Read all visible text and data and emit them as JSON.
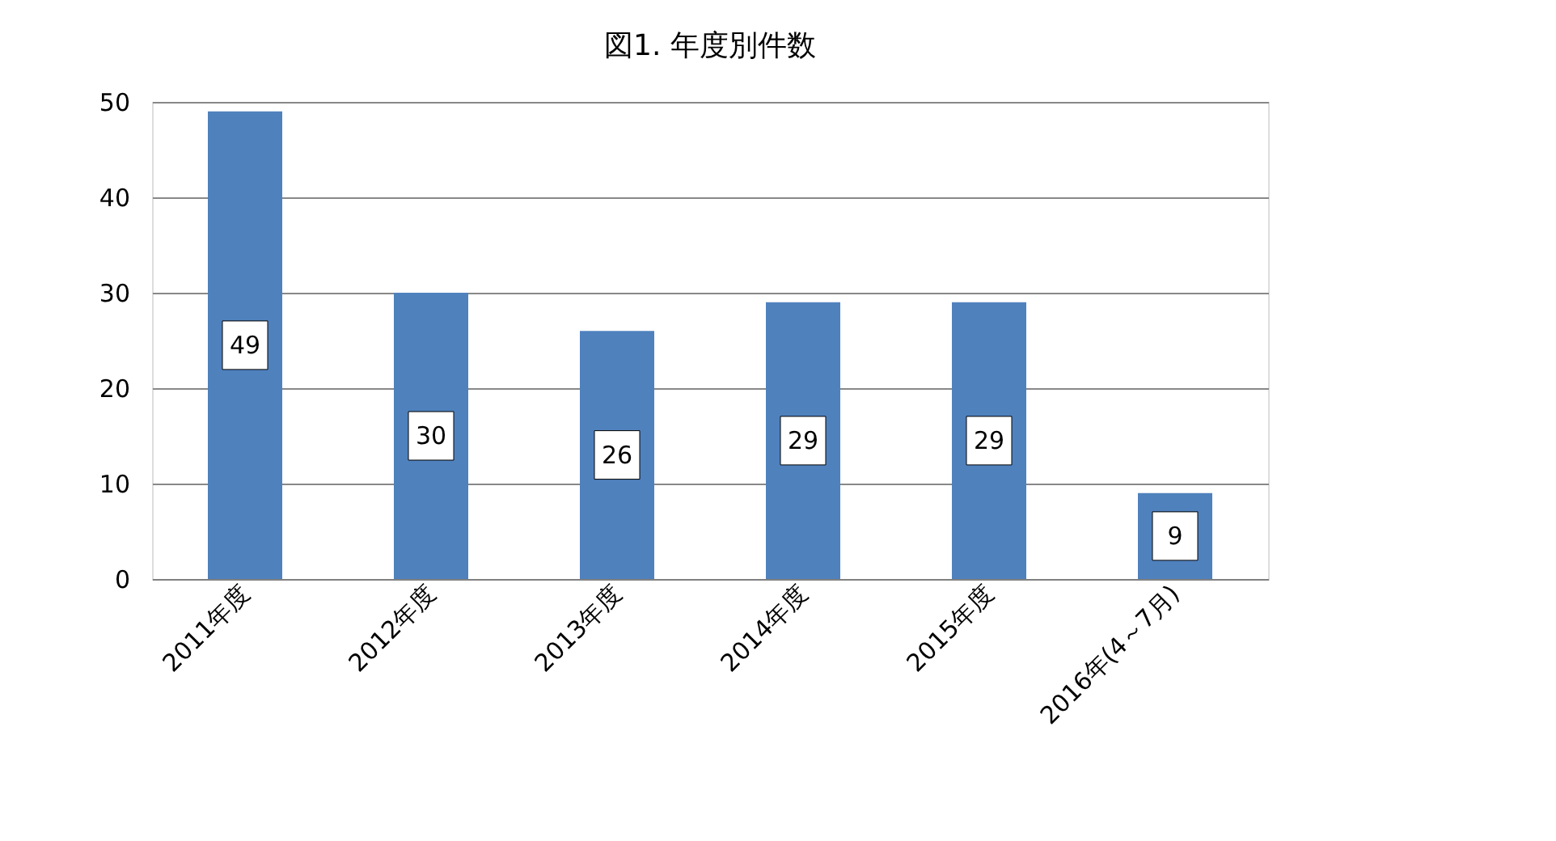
{
  "chart_data": {
    "type": "bar",
    "title": "図1.  年度別件数",
    "categories": [
      "2011年度",
      "2012年度",
      "2013年度",
      "2014年度",
      "2015年度",
      "2016年(4～7月)"
    ],
    "values": [
      49,
      30,
      26,
      29,
      29,
      9
    ],
    "color": "#4f81bd",
    "ylim": [
      0,
      50
    ],
    "yticks": [
      0,
      10,
      20,
      30,
      40,
      50
    ],
    "grid": "y",
    "data_labels": true
  }
}
